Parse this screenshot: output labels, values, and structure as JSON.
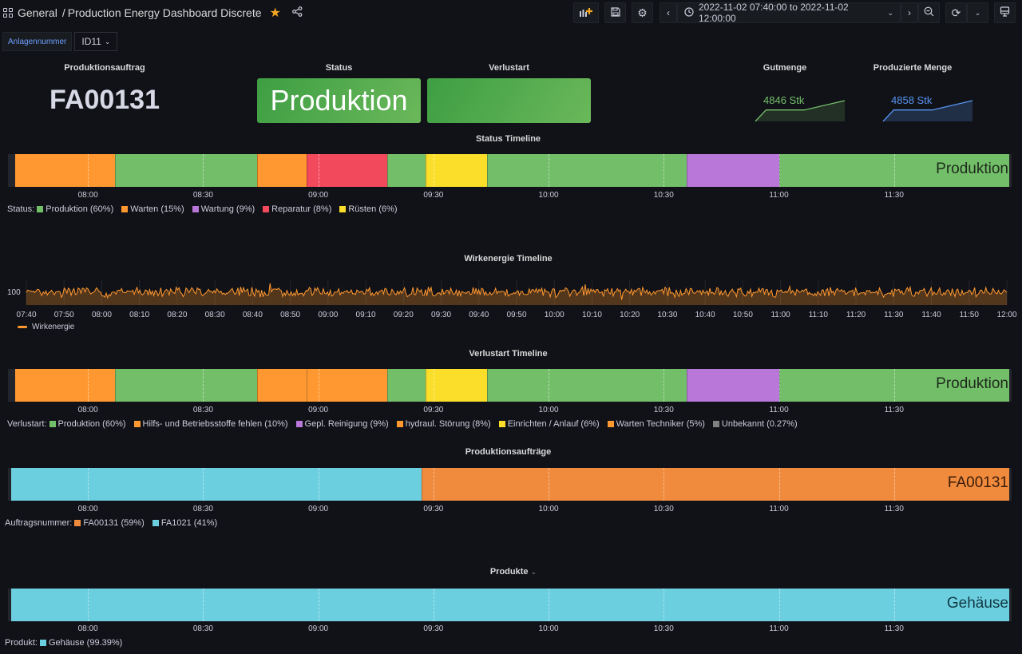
{
  "header": {
    "folder": "General",
    "separator": "/",
    "title": "Production Energy Dashboard Discrete",
    "starred": true,
    "time_range": "2022-11-02 07:40:00 to 2022-11-02 12:00:00",
    "icons": [
      "apps-icon",
      "star-icon",
      "share-icon",
      "add-panel-icon",
      "save-icon",
      "settings-icon",
      "chevron-left-icon",
      "clock-icon",
      "chevron-down-icon",
      "chevron-right-icon",
      "zoom-out-icon",
      "refresh-icon",
      "chevron-down-icon",
      "tv-mode-icon"
    ]
  },
  "variables": {
    "label": "Anlagennummer",
    "value": "ID11"
  },
  "colors": {
    "produktion": "#73bf69",
    "warten": "#ff9830",
    "wartung": "#b877d9",
    "reparatur": "#f2495c",
    "ruesten": "#fade2a",
    "unbekannt": "#808080",
    "fa00131": "#f08a3c",
    "fa1021": "#6ccfe0",
    "gehaeuse": "#6ccfe0",
    "energy": "#ff9830",
    "gut": "#73bf69",
    "prod": "#5794f2"
  },
  "stats": {
    "produktionsauftrag": {
      "title": "Produktionsauftrag",
      "value": "FA00131"
    },
    "status": {
      "title": "Status",
      "value": "Produktion"
    },
    "verlustart": {
      "title": "Verlustart",
      "value": ""
    },
    "gutmenge": {
      "title": "Gutmenge",
      "value": "4846 Stk",
      "spark": [
        0,
        0.55,
        0.55,
        0.55,
        1
      ]
    },
    "produzierte_menge": {
      "title": "Produzierte Menge",
      "value": "4858 Stk",
      "spark": [
        0,
        0.55,
        0.55,
        0.55,
        1
      ]
    }
  },
  "time_axis": {
    "start": "07:40",
    "end": "12:00",
    "ticks_30": [
      "08:00",
      "08:30",
      "09:00",
      "09:30",
      "10:00",
      "10:30",
      "11:00",
      "11:30"
    ],
    "ticks_10": [
      "07:40",
      "07:50",
      "08:00",
      "08:10",
      "08:20",
      "08:30",
      "08:40",
      "08:50",
      "09:00",
      "09:10",
      "09:20",
      "09:30",
      "09:40",
      "09:50",
      "10:00",
      "10:10",
      "10:20",
      "10:30",
      "10:40",
      "10:50",
      "11:00",
      "11:10",
      "11:20",
      "11:30",
      "11:40",
      "11:50",
      "12:00"
    ]
  },
  "chart_data": [
    {
      "type": "state-timeline",
      "title": "Status Timeline",
      "current_label": "Produktion",
      "segments": [
        {
          "state": "Warten",
          "start": "07:41",
          "end": "08:07",
          "color": "#ff9830"
        },
        {
          "state": "Produktion",
          "start": "08:07",
          "end": "08:44",
          "color": "#73bf69"
        },
        {
          "state": "Warten",
          "start": "08:44",
          "end": "08:57",
          "color": "#ff9830"
        },
        {
          "state": "Reparatur",
          "start": "08:57",
          "end": "09:18",
          "color": "#f2495c"
        },
        {
          "state": "Produktion",
          "start": "09:18",
          "end": "09:28",
          "color": "#73bf69"
        },
        {
          "state": "Rüsten",
          "start": "09:28",
          "end": "09:44",
          "color": "#fade2a"
        },
        {
          "state": "Produktion",
          "start": "09:44",
          "end": "10:36",
          "color": "#73bf69"
        },
        {
          "state": "Wartung",
          "start": "10:36",
          "end": "11:00",
          "color": "#b877d9"
        },
        {
          "state": "Produktion",
          "start": "11:00",
          "end": "12:00",
          "color": "#73bf69"
        }
      ],
      "legend_prefix": "Status:",
      "legend": [
        {
          "label": "Produktion (60%)",
          "color": "#73bf69"
        },
        {
          "label": "Warten (15%)",
          "color": "#ff9830"
        },
        {
          "label": "Wartung (9%)",
          "color": "#b877d9"
        },
        {
          "label": "Reparatur (8%)",
          "color": "#f2495c"
        },
        {
          "label": "Rüsten (6%)",
          "color": "#fade2a"
        }
      ]
    },
    {
      "type": "line",
      "title": "Wirkenergie Timeline",
      "ytick": "100",
      "series": [
        {
          "name": "Wirkenergie",
          "color": "#ff9830",
          "mean": 100,
          "noise": "high-frequency fluctuation around 100"
        }
      ],
      "x_range": [
        "07:40",
        "12:00"
      ],
      "legend": [
        {
          "label": "Wirkenergie",
          "color": "#ff9830"
        }
      ]
    },
    {
      "type": "state-timeline",
      "title": "Verlustart Timeline",
      "current_label": "Produktion",
      "segments": [
        {
          "state": "Hilfs- und Betriebsstoffe fehlen",
          "start": "07:41",
          "end": "08:07",
          "color": "#ff9830"
        },
        {
          "state": "Produktion",
          "start": "08:07",
          "end": "08:44",
          "color": "#73bf69"
        },
        {
          "state": "Warten Techniker",
          "start": "08:44",
          "end": "08:57",
          "color": "#ff9830"
        },
        {
          "state": "hydraul. Störung",
          "start": "08:57",
          "end": "09:18",
          "color": "#ff9830"
        },
        {
          "state": "Produktion",
          "start": "09:18",
          "end": "09:28",
          "color": "#73bf69"
        },
        {
          "state": "Einrichten / Anlauf",
          "start": "09:28",
          "end": "09:44",
          "color": "#fade2a"
        },
        {
          "state": "Produktion",
          "start": "09:44",
          "end": "10:36",
          "color": "#73bf69"
        },
        {
          "state": "Gepl. Reinigung",
          "start": "10:36",
          "end": "11:00",
          "color": "#b877d9"
        },
        {
          "state": "Produktion",
          "start": "11:00",
          "end": "12:00",
          "color": "#73bf69"
        }
      ],
      "legend_prefix": "Verlustart:",
      "legend": [
        {
          "label": "Produktion (60%)",
          "color": "#73bf69"
        },
        {
          "label": "Hilfs- und Betriebsstoffe fehlen (10%)",
          "color": "#ff9830"
        },
        {
          "label": "Gepl. Reinigung (9%)",
          "color": "#b877d9"
        },
        {
          "label": "hydraul. Störung (8%)",
          "color": "#ff9830"
        },
        {
          "label": "Einrichten / Anlauf (6%)",
          "color": "#fade2a"
        },
        {
          "label": "Warten Techniker (5%)",
          "color": "#ff9830"
        },
        {
          "label": "Unbekannt (0.27%)",
          "color": "#808080"
        }
      ]
    },
    {
      "type": "state-timeline",
      "title": "Produktionsaufträge",
      "current_label": "FA00131",
      "segments": [
        {
          "state": "FA1021",
          "start": "07:40",
          "end": "09:27",
          "color": "#6ccfe0"
        },
        {
          "state": "FA00131",
          "start": "09:27",
          "end": "12:00",
          "color": "#f08a3c"
        }
      ],
      "legend_prefix": "Auftragsnummer:",
      "legend": [
        {
          "label": "FA00131 (59%)",
          "color": "#f08a3c"
        },
        {
          "label": "FA1021 (41%)",
          "color": "#6ccfe0"
        }
      ]
    },
    {
      "type": "state-timeline",
      "title": "Produkte",
      "title_suffix": "⌄",
      "current_label": "Gehäuse",
      "segments": [
        {
          "state": "Gehäuse",
          "start": "07:40",
          "end": "12:00",
          "color": "#6ccfe0"
        }
      ],
      "legend_prefix": "Produkt:",
      "legend": [
        {
          "label": "Gehäuse (99.39%)",
          "color": "#6ccfe0"
        }
      ]
    }
  ]
}
